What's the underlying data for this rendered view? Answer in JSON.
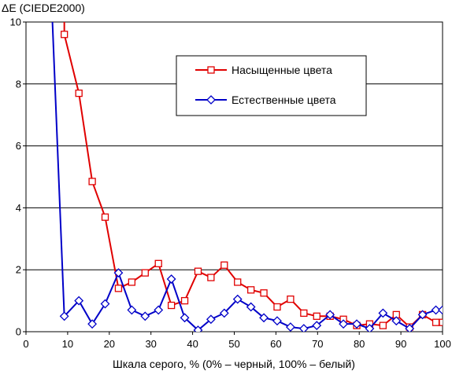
{
  "chart_data": {
    "type": "line",
    "ylabel": "ΔE (CIEDE2000)",
    "xlabel": "Шкала серого, % (0% – черный, 100% – белый)",
    "xlim": [
      0,
      100
    ],
    "ylim": [
      0,
      10
    ],
    "x_ticks": [
      "0",
      "10",
      "20",
      "30",
      "40",
      "50",
      "60",
      "70",
      "80",
      "90",
      "100"
    ],
    "y_ticks": [
      "0",
      "2",
      "4",
      "6",
      "8",
      "10"
    ],
    "grid": "horizontal",
    "legend_position": "top-right",
    "series": [
      {
        "name": "Насыщенные цвета",
        "color": "#e00000",
        "marker": "square",
        "x": [
          9.2,
          9.2,
          12.7,
          15.9,
          19.0,
          22.2,
          25.4,
          28.6,
          31.8,
          34.9,
          38.1,
          41.3,
          44.4,
          47.6,
          50.8,
          54.0,
          57.1,
          60.3,
          63.5,
          66.7,
          69.8,
          73.0,
          76.2,
          79.4,
          82.5,
          85.7,
          88.9,
          92.1,
          95.2,
          98.4,
          100
        ],
        "y": [
          10.5,
          9.6,
          7.7,
          4.85,
          3.7,
          1.4,
          1.6,
          1.9,
          2.2,
          0.85,
          1.0,
          1.95,
          1.75,
          2.15,
          1.6,
          1.35,
          1.25,
          0.8,
          1.05,
          0.6,
          0.5,
          0.5,
          0.4,
          0.2,
          0.25,
          0.2,
          0.55,
          0.15,
          0.55,
          0.3,
          0.3
        ],
        "markers": [
          false,
          true,
          true,
          true,
          true,
          true,
          true,
          true,
          true,
          true,
          true,
          true,
          true,
          true,
          true,
          true,
          true,
          true,
          true,
          true,
          true,
          true,
          true,
          true,
          true,
          true,
          true,
          true,
          true,
          true,
          true
        ]
      },
      {
        "name": "Естественные цвета",
        "color": "#0000c8",
        "marker": "diamond",
        "x": [
          6.2,
          9.2,
          12.7,
          15.9,
          19.0,
          22.2,
          25.4,
          28.6,
          31.8,
          34.9,
          38.1,
          41.3,
          44.4,
          47.6,
          50.8,
          54.0,
          57.1,
          60.3,
          63.5,
          66.7,
          69.8,
          73.0,
          76.2,
          79.4,
          82.5,
          85.7,
          88.9,
          92.1,
          95.2,
          98.4,
          100
        ],
        "y": [
          10.5,
          0.5,
          1.0,
          0.25,
          0.9,
          1.9,
          0.7,
          0.5,
          0.7,
          1.7,
          0.45,
          0.05,
          0.4,
          0.6,
          1.05,
          0.8,
          0.45,
          0.35,
          0.15,
          0.1,
          0.2,
          0.55,
          0.25,
          0.25,
          0.1,
          0.6,
          0.35,
          0.1,
          0.55,
          0.7,
          0.7
        ],
        "markers": [
          false,
          true,
          true,
          true,
          true,
          true,
          true,
          true,
          true,
          true,
          true,
          true,
          true,
          true,
          true,
          true,
          true,
          true,
          true,
          true,
          true,
          true,
          true,
          true,
          true,
          true,
          true,
          true,
          true,
          true,
          true
        ]
      }
    ]
  }
}
